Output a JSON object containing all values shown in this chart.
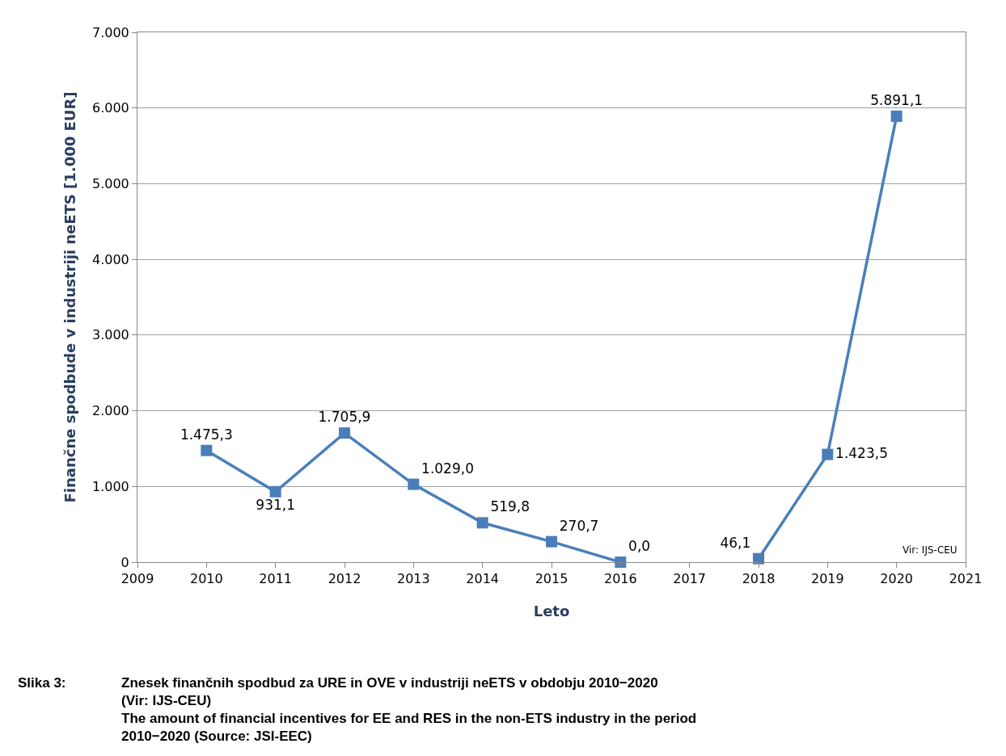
{
  "chart_data": {
    "type": "line",
    "x": [
      2010,
      2011,
      2012,
      2013,
      2014,
      2015,
      2016,
      2017,
      2018,
      2019,
      2020
    ],
    "series": [
      {
        "color": "#4a7ebb",
        "values": [
          1475.3,
          931.1,
          1705.9,
          1029.0,
          519.8,
          270.7,
          0.0,
          null,
          46.1,
          1423.5,
          5891.1
        ],
        "value_labels": [
          "1.475,3",
          "931,1",
          "1.705,9",
          "1.029,0",
          "519,8",
          "270,7",
          "0,0",
          null,
          "46,1",
          "1.423,5",
          "5.891,1"
        ]
      }
    ],
    "xlabel": "Leto",
    "ylabel": "Finančne spodbude v industriji neETS [1.000 EUR]",
    "xlim": [
      2009,
      2021
    ],
    "xticks": [
      2009,
      2010,
      2011,
      2012,
      2013,
      2014,
      2015,
      2016,
      2017,
      2018,
      2019,
      2020,
      2021
    ],
    "ylim": [
      0,
      7000
    ],
    "yticks": [
      {
        "value": 0,
        "label": "0"
      },
      {
        "value": 1000,
        "label": "1.000"
      },
      {
        "value": 2000,
        "label": "2.000"
      },
      {
        "value": 3000,
        "label": "3.000"
      },
      {
        "value": 4000,
        "label": "4.000"
      },
      {
        "value": 5000,
        "label": "5.000"
      },
      {
        "value": 6000,
        "label": "6.000"
      },
      {
        "value": 7000,
        "label": "7.000"
      }
    ],
    "grid": "y",
    "marker": "square",
    "line_style": "solid",
    "legend": false,
    "annotations": [
      "Vir: IJS-CEU",
      "Slika 3:",
      "Znesek finančnih spodbud za URE in OVE v industriji neETS v obdobju 2010−2020\n(Vir: IJS-CEU)\nThe amount of financial incentives for EE and RES in the non-ETS industry in the period\n2010−2020 (Source: JSI-EEC)"
    ]
  }
}
